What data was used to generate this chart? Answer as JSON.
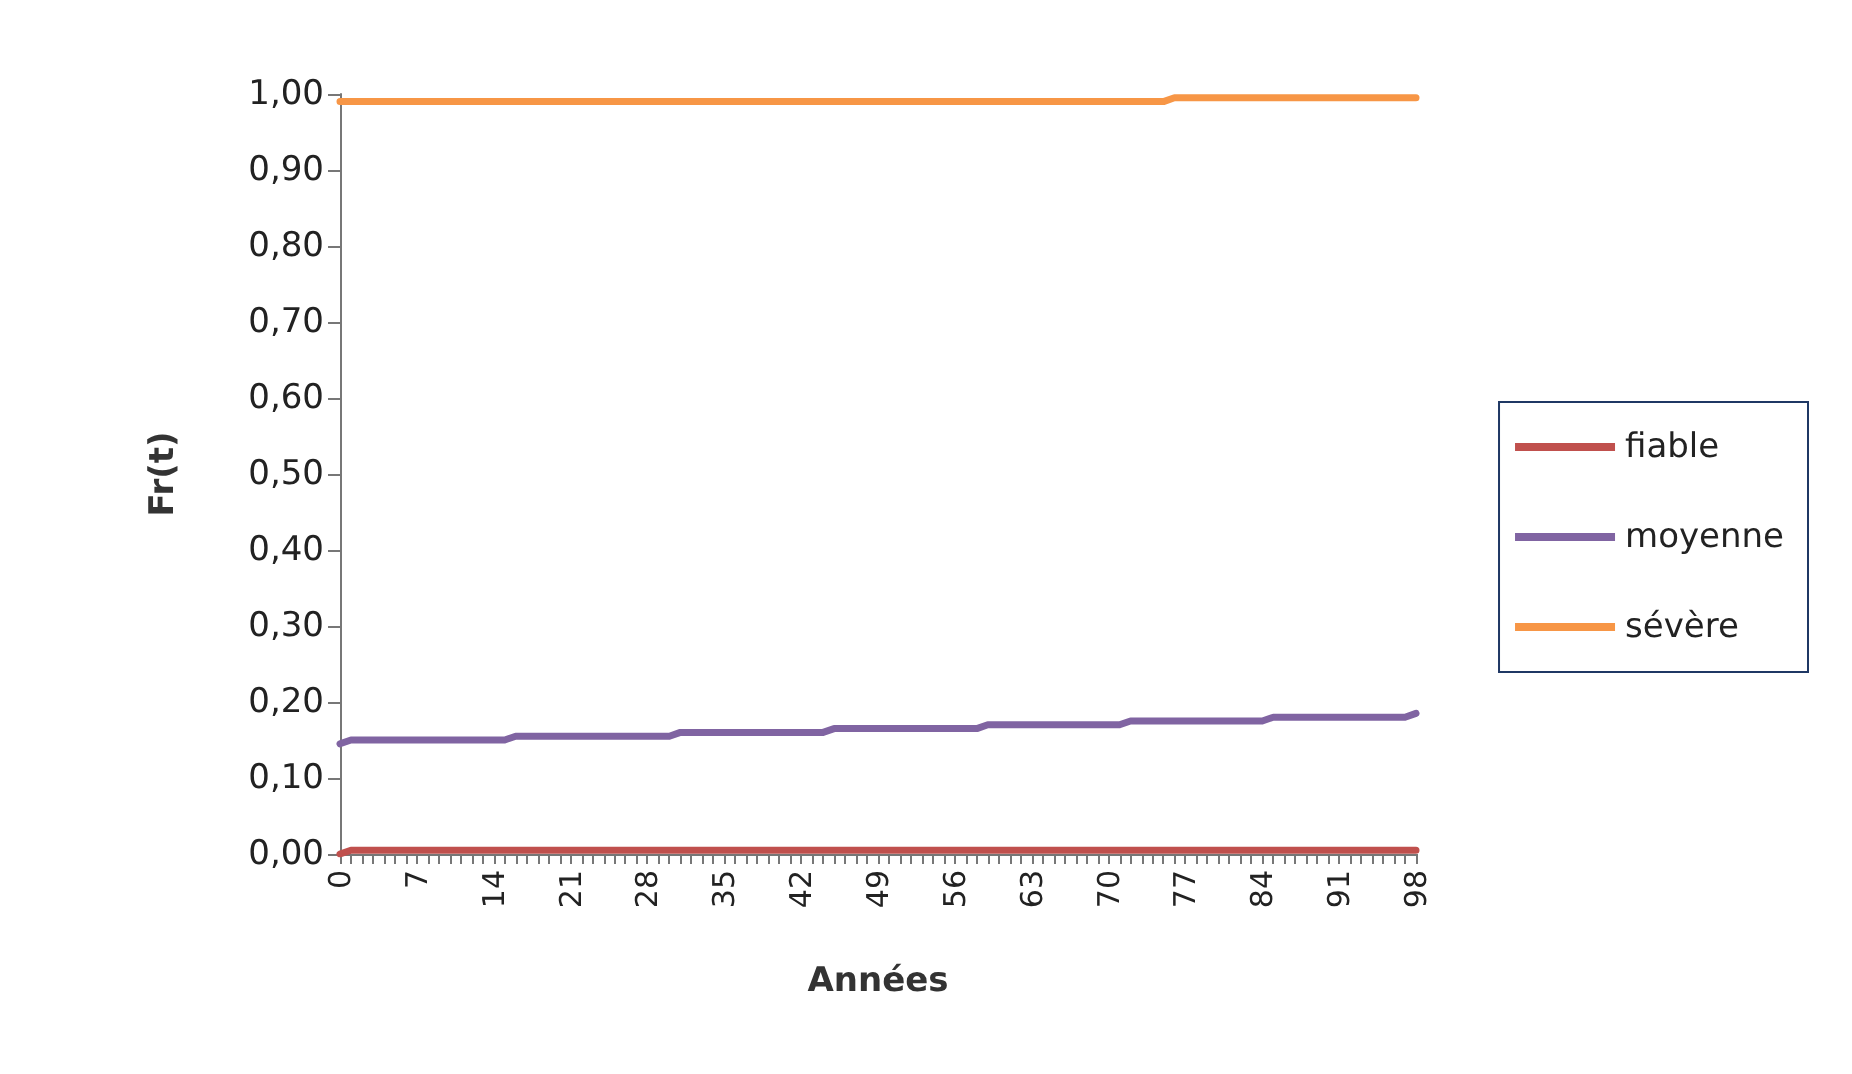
{
  "chart_data": {
    "type": "line",
    "xlabel": "Années",
    "ylabel": "Fr(t)",
    "categories": [
      "0",
      null,
      null,
      null,
      null,
      null,
      null,
      "7",
      null,
      null,
      null,
      null,
      null,
      null,
      "14",
      null,
      null,
      null,
      null,
      null,
      null,
      "21",
      null,
      null,
      null,
      null,
      null,
      null,
      "28",
      null,
      null,
      null,
      null,
      null,
      null,
      "35",
      null,
      null,
      null,
      null,
      null,
      null,
      "42",
      null,
      null,
      null,
      null,
      null,
      null,
      "49",
      null,
      null,
      null,
      null,
      null,
      null,
      "56",
      null,
      null,
      null,
      null,
      null,
      null,
      "63",
      null,
      null,
      null,
      null,
      null,
      null,
      "70",
      null,
      null,
      null,
      null,
      null,
      null,
      "77",
      null,
      null,
      null,
      null,
      null,
      null,
      "84",
      null,
      null,
      null,
      null,
      null,
      null,
      "91",
      null,
      null,
      null,
      null,
      null,
      null,
      "98"
    ],
    "series": [
      {
        "name": "fiable",
        "color": "#c0504d",
        "values": [
          0,
          0.005,
          0.005,
          0.005,
          0.005,
          0.005,
          0.005,
          0.005,
          0.005,
          0.005,
          0.005,
          0.005,
          0.005,
          0.005,
          0.005,
          0.005,
          0.005,
          0.005,
          0.005,
          0.005,
          0.005,
          0.005,
          0.005,
          0.005,
          0.005,
          0.005,
          0.005,
          0.005,
          0.005,
          0.005,
          0.005,
          0.005,
          0.005,
          0.005,
          0.005,
          0.005,
          0.005,
          0.005,
          0.005,
          0.005,
          0.005,
          0.005,
          0.005,
          0.005,
          0.005,
          0.005,
          0.005,
          0.005,
          0.005,
          0.005,
          0.005,
          0.005,
          0.005,
          0.005,
          0.005,
          0.005,
          0.005,
          0.005,
          0.005,
          0.005,
          0.005,
          0.005,
          0.005,
          0.005,
          0.005,
          0.005,
          0.005,
          0.005,
          0.005,
          0.005,
          0.005,
          0.005,
          0.005,
          0.005,
          0.005,
          0.005,
          0.005,
          0.005,
          0.005,
          0.005,
          0.005,
          0.005,
          0.005,
          0.005,
          0.005,
          0.005,
          0.005,
          0.005,
          0.005,
          0.005,
          0.005,
          0.005,
          0.005,
          0.005,
          0.005,
          0.005,
          0.005,
          0.005,
          0.005
        ]
      },
      {
        "name": "moyenne",
        "color": "#8064a2",
        "values": [
          0.145,
          0.15,
          0.15,
          0.15,
          0.15,
          0.15,
          0.15,
          0.15,
          0.15,
          0.15,
          0.15,
          0.15,
          0.15,
          0.15,
          0.15,
          0.15,
          0.155,
          0.155,
          0.155,
          0.155,
          0.155,
          0.155,
          0.155,
          0.155,
          0.155,
          0.155,
          0.155,
          0.155,
          0.155,
          0.155,
          0.155,
          0.16,
          0.16,
          0.16,
          0.16,
          0.16,
          0.16,
          0.16,
          0.16,
          0.16,
          0.16,
          0.16,
          0.16,
          0.16,
          0.16,
          0.165,
          0.165,
          0.165,
          0.165,
          0.165,
          0.165,
          0.165,
          0.165,
          0.165,
          0.165,
          0.165,
          0.165,
          0.165,
          0.165,
          0.17,
          0.17,
          0.17,
          0.17,
          0.17,
          0.17,
          0.17,
          0.17,
          0.17,
          0.17,
          0.17,
          0.17,
          0.17,
          0.175,
          0.175,
          0.175,
          0.175,
          0.175,
          0.175,
          0.175,
          0.175,
          0.175,
          0.175,
          0.175,
          0.175,
          0.175,
          0.18,
          0.18,
          0.18,
          0.18,
          0.18,
          0.18,
          0.18,
          0.18,
          0.18,
          0.18,
          0.18,
          0.18,
          0.18,
          0.185
        ]
      },
      {
        "name": "sévère",
        "color": "#f79646",
        "values": [
          0.99,
          0.99,
          0.99,
          0.99,
          0.99,
          0.99,
          0.99,
          0.99,
          0.99,
          0.99,
          0.99,
          0.99,
          0.99,
          0.99,
          0.99,
          0.99,
          0.99,
          0.99,
          0.99,
          0.99,
          0.99,
          0.99,
          0.99,
          0.99,
          0.99,
          0.99,
          0.99,
          0.99,
          0.99,
          0.99,
          0.99,
          0.99,
          0.99,
          0.99,
          0.99,
          0.99,
          0.99,
          0.99,
          0.99,
          0.99,
          0.99,
          0.99,
          0.99,
          0.99,
          0.99,
          0.99,
          0.99,
          0.99,
          0.99,
          0.99,
          0.99,
          0.99,
          0.99,
          0.99,
          0.99,
          0.99,
          0.99,
          0.99,
          0.99,
          0.99,
          0.99,
          0.99,
          0.99,
          0.99,
          0.99,
          0.99,
          0.99,
          0.99,
          0.99,
          0.99,
          0.99,
          0.99,
          0.99,
          0.99,
          0.99,
          0.99,
          0.995,
          0.995,
          0.995,
          0.995,
          0.995,
          0.995,
          0.995,
          0.995,
          0.995,
          0.995,
          0.995,
          0.995,
          0.995,
          0.995,
          0.995,
          0.995,
          0.995,
          0.995,
          0.995,
          0.995,
          0.995,
          0.995,
          0.995
        ]
      }
    ],
    "ylim": [
      0,
      1
    ],
    "yticks": [
      {
        "value": 0,
        "label": "0,00"
      },
      {
        "value": 0.1,
        "label": "0,10"
      },
      {
        "value": 0.2,
        "label": "0,20"
      },
      {
        "value": 0.3,
        "label": "0,30"
      },
      {
        "value": 0.4,
        "label": "0,40"
      },
      {
        "value": 0.5,
        "label": "0,50"
      },
      {
        "value": 0.6,
        "label": "0,60"
      },
      {
        "value": 0.7,
        "label": "0,70"
      },
      {
        "value": 0.8,
        "label": "0,80"
      },
      {
        "value": 0.9,
        "label": "0,90"
      },
      {
        "value": 1,
        "label": "1,00"
      }
    ],
    "grid": false,
    "legend": "right",
    "marker": "none",
    "line_style": "solid"
  }
}
